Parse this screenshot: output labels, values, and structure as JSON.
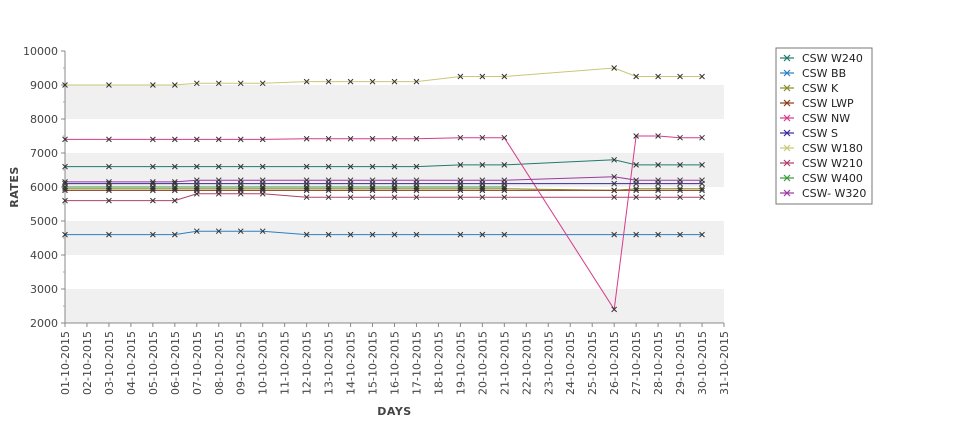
{
  "chart_data": {
    "type": "line",
    "title": "",
    "xlabel": "DAYS",
    "ylabel": "RATES",
    "ylim": [
      2000,
      10000
    ],
    "yticks": [
      2000,
      3000,
      4000,
      5000,
      6000,
      7000,
      8000,
      9000,
      10000
    ],
    "grid": "horizontal alternating bands",
    "legend_position": "right",
    "categories": [
      "01-10-2015",
      "02-10-2015",
      "03-10-2015",
      "04-10-2015",
      "05-10-2015",
      "06-10-2015",
      "07-10-2015",
      "08-10-2015",
      "09-10-2015",
      "10-10-2015",
      "11-10-2015",
      "12-10-2015",
      "13-10-2015",
      "14-10-2015",
      "15-10-2015",
      "16-10-2015",
      "17-10-2015",
      "18-10-2015",
      "19-10-2015",
      "20-10-2015",
      "21-10-2015",
      "22-10-2015",
      "23-10-2015",
      "24-10-2015",
      "25-10-2015",
      "26-10-2015",
      "27-10-2015",
      "28-10-2015",
      "29-10-2015",
      "30-10-2015",
      "31-10-2015"
    ],
    "series": [
      {
        "name": "CSW  W240",
        "color": "#1f7a6b",
        "values": [
          6600,
          null,
          6600,
          null,
          6600,
          6600,
          6600,
          6600,
          6600,
          6600,
          null,
          6600,
          6600,
          6600,
          6600,
          6600,
          6600,
          null,
          6650,
          6650,
          6650,
          null,
          null,
          null,
          null,
          6800,
          6650,
          6650,
          6650,
          6650,
          null
        ]
      },
      {
        "name": "CSW BB",
        "color": "#2a7fc0",
        "values": [
          4600,
          null,
          4600,
          null,
          4600,
          4600,
          4700,
          4700,
          4700,
          4700,
          null,
          4600,
          4600,
          4600,
          4600,
          4600,
          4600,
          null,
          4600,
          4600,
          4600,
          null,
          null,
          null,
          null,
          4600,
          4600,
          4600,
          4600,
          4600,
          null
        ]
      },
      {
        "name": "CSW K",
        "color": "#8a8a2a",
        "values": [
          5950,
          null,
          5950,
          null,
          5950,
          5950,
          5950,
          5950,
          5950,
          5950,
          null,
          5950,
          5950,
          5950,
          5950,
          5950,
          5950,
          null,
          5950,
          5950,
          5950,
          null,
          null,
          null,
          null,
          5900,
          5950,
          5950,
          5950,
          5950,
          null
        ]
      },
      {
        "name": "CSW LWP",
        "color": "#8b3a1a",
        "values": [
          5900,
          null,
          5900,
          null,
          5900,
          5900,
          5900,
          5900,
          5900,
          5900,
          null,
          5900,
          5900,
          5900,
          5900,
          5900,
          5900,
          null,
          5900,
          5900,
          5900,
          null,
          null,
          null,
          null,
          5900,
          5900,
          5900,
          5900,
          5900,
          null
        ]
      },
      {
        "name": "CSW NW",
        "color": "#d63a8c",
        "values": [
          7400,
          null,
          7400,
          null,
          7400,
          7400,
          7400,
          7400,
          7400,
          7400,
          null,
          7420,
          7420,
          7420,
          7420,
          7420,
          7420,
          null,
          7450,
          7450,
          7450,
          null,
          null,
          null,
          null,
          2400,
          7500,
          7500,
          7450,
          7450,
          null
        ]
      },
      {
        "name": "CSW S",
        "color": "#3a2a9a",
        "values": [
          6100,
          null,
          6100,
          null,
          6100,
          6100,
          6100,
          6100,
          6100,
          6100,
          null,
          6100,
          6100,
          6100,
          6100,
          6100,
          6100,
          null,
          6100,
          6100,
          6100,
          null,
          null,
          null,
          null,
          6100,
          6100,
          6100,
          6100,
          6100,
          null
        ]
      },
      {
        "name": "CSW W180",
        "color": "#c8c878",
        "values": [
          9000,
          null,
          9000,
          null,
          9000,
          9000,
          9050,
          9050,
          9050,
          9050,
          null,
          9100,
          9100,
          9100,
          9100,
          9100,
          9100,
          null,
          9250,
          9250,
          9250,
          null,
          null,
          null,
          null,
          9500,
          9250,
          9250,
          9250,
          9250,
          null
        ]
      },
      {
        "name": "CSW W210",
        "color": "#b0406a",
        "values": [
          5600,
          null,
          5600,
          null,
          5600,
          5600,
          5800,
          5800,
          5800,
          5800,
          null,
          5700,
          5700,
          5700,
          5700,
          5700,
          5700,
          null,
          5700,
          5700,
          5700,
          null,
          null,
          null,
          null,
          5700,
          5700,
          5700,
          5700,
          5700,
          null
        ]
      },
      {
        "name": "CSW W400",
        "color": "#3a9a3a",
        "values": [
          6000,
          null,
          6000,
          null,
          6000,
          6000,
          6000,
          6000,
          6000,
          6000,
          null,
          6000,
          6000,
          6000,
          6000,
          6000,
          6000,
          null,
          6000,
          6000,
          6000,
          null,
          null,
          null,
          null,
          null,
          null,
          null,
          null,
          null,
          null
        ]
      },
      {
        "name": "CSW- W320",
        "color": "#9a3aa0",
        "values": [
          6150,
          null,
          6150,
          null,
          6150,
          6150,
          6200,
          6200,
          6200,
          6200,
          null,
          6200,
          6200,
          6200,
          6200,
          6200,
          6200,
          null,
          6200,
          6200,
          6200,
          null,
          null,
          null,
          null,
          6300,
          6200,
          6200,
          6200,
          6200,
          null
        ]
      }
    ]
  }
}
